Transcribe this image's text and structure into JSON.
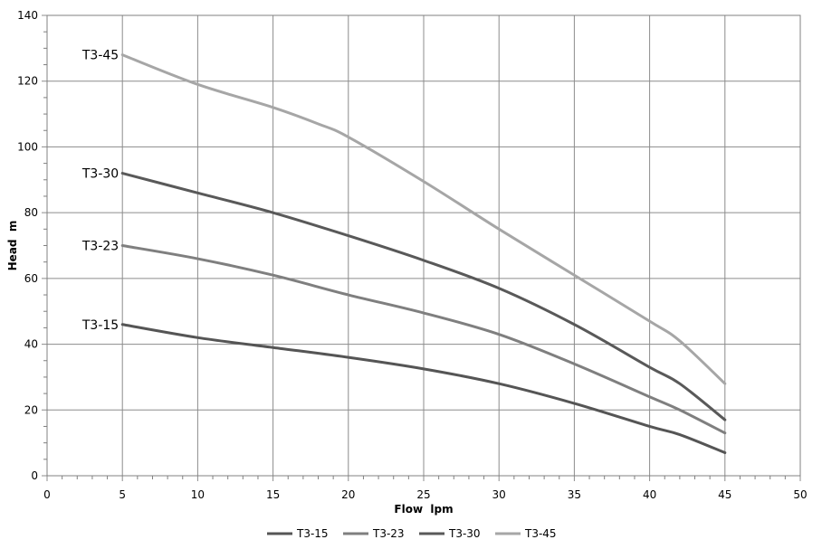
{
  "chart_data": {
    "type": "line",
    "xlabel": "Flow  lpm",
    "ylabel": "Head  m",
    "xlim": [
      0,
      50
    ],
    "ylim": [
      0,
      140
    ],
    "xticks": [
      0,
      5,
      10,
      15,
      20,
      25,
      30,
      35,
      40,
      45,
      50
    ],
    "yticks": [
      0,
      20,
      40,
      60,
      80,
      100,
      120,
      140
    ],
    "minor_x_step": 1,
    "minor_y_step": 5,
    "grid": true,
    "legend_position": "bottom",
    "series": [
      {
        "name": "T3-15",
        "color": "#555555",
        "x": [
          5,
          10,
          15,
          20,
          25,
          30,
          35,
          40,
          42,
          45
        ],
        "y": [
          46,
          42,
          39,
          36,
          32.5,
          28,
          22,
          15,
          12.5,
          7
        ]
      },
      {
        "name": "T3-23",
        "color": "#7f7f7f",
        "x": [
          5,
          10,
          15,
          20,
          25,
          30,
          35,
          40,
          42,
          45
        ],
        "y": [
          70,
          66,
          61,
          55,
          49.5,
          43,
          34,
          24,
          20,
          13
        ]
      },
      {
        "name": "T3-30",
        "color": "#595959",
        "x": [
          5,
          10,
          15,
          20,
          25,
          30,
          35,
          40,
          42,
          45
        ],
        "y": [
          92,
          86,
          80,
          73,
          65.5,
          57,
          46,
          33,
          28,
          17
        ]
      },
      {
        "name": "T3-45",
        "color": "#a6a6a6",
        "x": [
          5,
          10,
          15,
          18,
          20,
          25,
          30,
          35,
          40,
          42,
          45
        ],
        "y": [
          128,
          119,
          112,
          107,
          103,
          89.5,
          75,
          61,
          47,
          41,
          28
        ]
      }
    ]
  }
}
